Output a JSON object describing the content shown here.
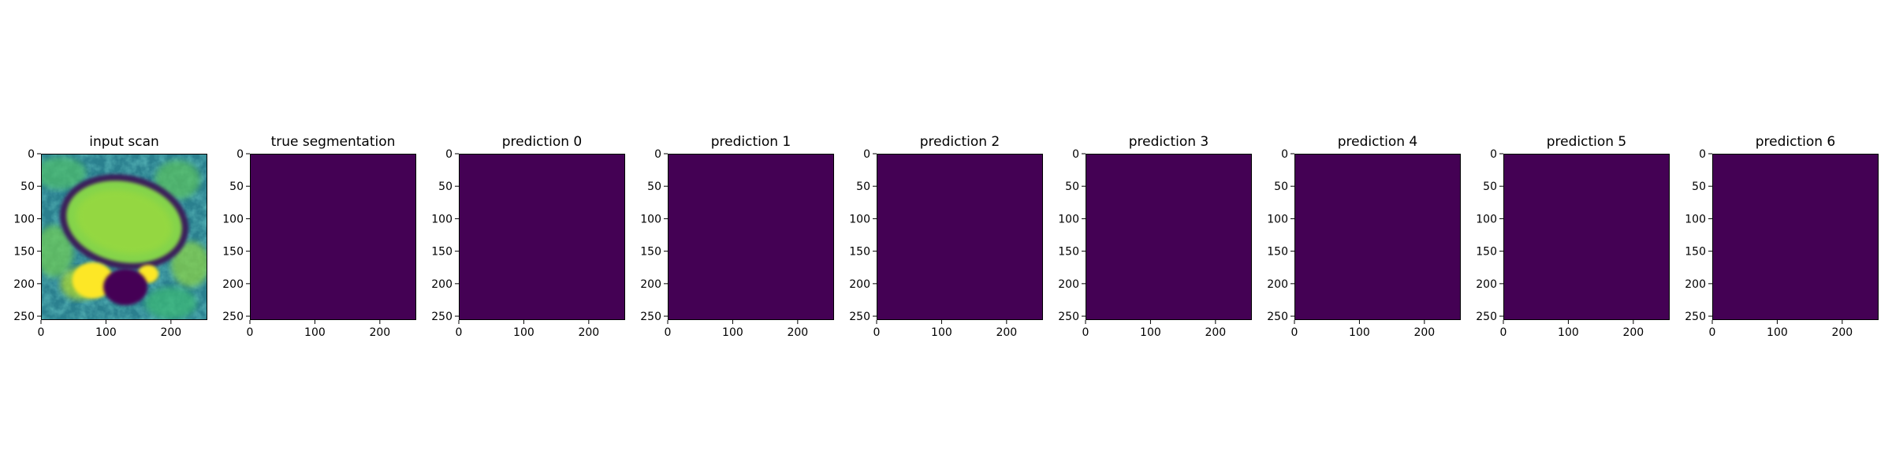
{
  "figure": {
    "background": "#ffffff",
    "colormap": "viridis",
    "empty_mask_color": "#440154"
  },
  "chart_data": [
    {
      "type": "heatmap",
      "title": "input scan",
      "content": "grayscale MRI scan rendered with viridis colormap",
      "xlim": [
        0,
        256
      ],
      "ylim": [
        256,
        0
      ],
      "xticks": [
        0,
        100,
        200
      ],
      "yticks": [
        0,
        50,
        100,
        150,
        200,
        250
      ],
      "value": null
    },
    {
      "type": "heatmap",
      "title": "true segmentation",
      "xlim": [
        0,
        256
      ],
      "ylim": [
        256,
        0
      ],
      "xticks": [
        0,
        100,
        200
      ],
      "yticks": [
        0,
        50,
        100,
        150,
        200,
        250
      ],
      "value": 0
    },
    {
      "type": "heatmap",
      "title": "prediction 0",
      "xlim": [
        0,
        256
      ],
      "ylim": [
        256,
        0
      ],
      "xticks": [
        0,
        100,
        200
      ],
      "yticks": [
        0,
        50,
        100,
        150,
        200,
        250
      ],
      "value": 0
    },
    {
      "type": "heatmap",
      "title": "prediction 1",
      "xlim": [
        0,
        256
      ],
      "ylim": [
        256,
        0
      ],
      "xticks": [
        0,
        100,
        200
      ],
      "yticks": [
        0,
        50,
        100,
        150,
        200,
        250
      ],
      "value": 0
    },
    {
      "type": "heatmap",
      "title": "prediction 2",
      "xlim": [
        0,
        256
      ],
      "ylim": [
        256,
        0
      ],
      "xticks": [
        0,
        100,
        200
      ],
      "yticks": [
        0,
        50,
        100,
        150,
        200,
        250
      ],
      "value": 0
    },
    {
      "type": "heatmap",
      "title": "prediction 3",
      "xlim": [
        0,
        256
      ],
      "ylim": [
        256,
        0
      ],
      "xticks": [
        0,
        100,
        200
      ],
      "yticks": [
        0,
        50,
        100,
        150,
        200,
        250
      ],
      "value": 0
    },
    {
      "type": "heatmap",
      "title": "prediction 4",
      "xlim": [
        0,
        256
      ],
      "ylim": [
        256,
        0
      ],
      "xticks": [
        0,
        100,
        200
      ],
      "yticks": [
        0,
        50,
        100,
        150,
        200,
        250
      ],
      "value": 0
    },
    {
      "type": "heatmap",
      "title": "prediction 5",
      "xlim": [
        0,
        256
      ],
      "ylim": [
        256,
        0
      ],
      "xticks": [
        0,
        100,
        200
      ],
      "yticks": [
        0,
        50,
        100,
        150,
        200,
        250
      ],
      "value": 0
    },
    {
      "type": "heatmap",
      "title": "prediction 6",
      "xlim": [
        0,
        256
      ],
      "ylim": [
        256,
        0
      ],
      "xticks": [
        0,
        100,
        200
      ],
      "yticks": [
        0,
        50,
        100,
        150,
        200,
        250
      ],
      "value": 0
    }
  ]
}
